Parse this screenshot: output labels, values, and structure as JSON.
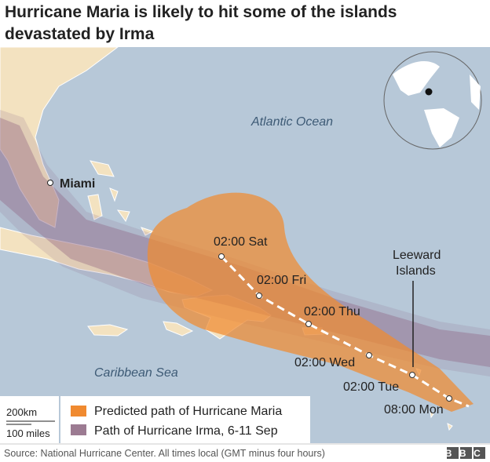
{
  "header": {
    "title": "Hurricane Maria is likely to hit some of the islands devastated by Irma"
  },
  "map": {
    "labels": {
      "atlantic": "Atlantic Ocean",
      "caribbean": "Caribbean Sea",
      "miami": "Miami",
      "leeward": [
        "Leeward",
        "Islands"
      ]
    },
    "track": [
      "02:00 Sat",
      "02:00 Fri",
      "02:00 Thu",
      "02:00 Wed",
      "02:00 Tue",
      "08:00 Mon"
    ],
    "scale": {
      "km": "200km",
      "miles": "100 miles"
    }
  },
  "legend": {
    "items": [
      "Predicted path of Hurricane Maria",
      "Path of Hurricane Irma, 6-11 Sep"
    ]
  },
  "footer": {
    "source": "Source: National Hurricane Center. All times local (GMT minus four hours)",
    "logo": "BBC"
  }
}
